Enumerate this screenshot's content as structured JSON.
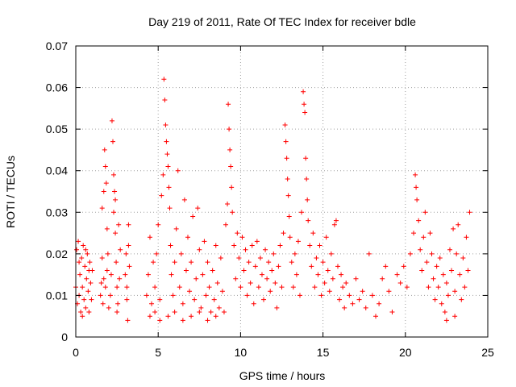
{
  "chart_data": {
    "type": "scatter",
    "title": "Day 219 of 2011, Rate Of TEC Index for receiver bdle",
    "xlabel": "GPS time / hours",
    "ylabel": "ROTI / TECUs",
    "xlim": [
      0,
      25
    ],
    "ylim": [
      0,
      0.07
    ],
    "x_ticks": [
      0,
      5,
      10,
      15,
      20,
      25
    ],
    "y_ticks": [
      0,
      0.01,
      0.02,
      0.03,
      0.04,
      0.05,
      0.06,
      0.07
    ],
    "x_tick_labels": [
      "0",
      "5",
      "10",
      "15",
      "20",
      "25"
    ],
    "y_tick_labels": [
      "0",
      "0.01",
      "0.02",
      "0.03",
      "0.04",
      "0.05",
      "0.06",
      "0.07"
    ],
    "grid": true,
    "marker": "+",
    "color": "#ff0000",
    "points": [
      [
        0.0,
        0.012
      ],
      [
        0.05,
        0.021
      ],
      [
        0.1,
        0.008
      ],
      [
        0.15,
        0.023
      ],
      [
        0.2,
        0.01
      ],
      [
        0.25,
        0.015
      ],
      [
        0.3,
        0.006
      ],
      [
        0.35,
        0.019
      ],
      [
        0.4,
        0.012
      ],
      [
        0.45,
        0.022
      ],
      [
        0.5,
        0.009
      ],
      [
        0.55,
        0.017
      ],
      [
        0.6,
        0.007
      ],
      [
        0.65,
        0.014
      ],
      [
        0.7,
        0.02
      ],
      [
        0.75,
        0.011
      ],
      [
        0.8,
        0.006
      ],
      [
        0.85,
        0.018
      ],
      [
        0.9,
        0.013
      ],
      [
        0.95,
        0.009
      ],
      [
        1.0,
        0.016
      ],
      [
        0.2,
        0.018
      ],
      [
        0.4,
        0.005
      ],
      [
        0.6,
        0.021
      ],
      [
        0.8,
        0.016
      ],
      [
        1.5,
        0.01
      ],
      [
        1.55,
        0.013
      ],
      [
        1.6,
        0.019
      ],
      [
        1.65,
        0.008
      ],
      [
        1.7,
        0.014
      ],
      [
        1.75,
        0.045
      ],
      [
        1.8,
        0.041
      ],
      [
        1.85,
        0.037
      ],
      [
        1.9,
        0.026
      ],
      [
        1.95,
        0.02
      ],
      [
        2.0,
        0.007
      ],
      [
        1.6,
        0.031
      ],
      [
        1.7,
        0.035
      ],
      [
        1.8,
        0.012
      ],
      [
        1.9,
        0.016
      ],
      [
        2.1,
        0.01
      ],
      [
        2.15,
        0.015
      ],
      [
        2.2,
        0.052
      ],
      [
        2.25,
        0.047
      ],
      [
        2.3,
        0.039
      ],
      [
        2.35,
        0.035
      ],
      [
        2.4,
        0.025
      ],
      [
        2.45,
        0.018
      ],
      [
        2.5,
        0.012
      ],
      [
        2.55,
        0.008
      ],
      [
        2.6,
        0.027
      ],
      [
        2.65,
        0.014
      ],
      [
        2.7,
        0.021
      ],
      [
        2.3,
        0.03
      ],
      [
        2.4,
        0.033
      ],
      [
        2.5,
        0.006
      ],
      [
        3.0,
        0.015
      ],
      [
        3.05,
        0.02
      ],
      [
        3.1,
        0.012
      ],
      [
        3.15,
        0.004
      ],
      [
        3.2,
        0.027
      ],
      [
        3.25,
        0.017
      ],
      [
        3.1,
        0.009
      ],
      [
        3.2,
        0.022
      ],
      [
        4.3,
        0.01
      ],
      [
        4.4,
        0.015
      ],
      [
        4.5,
        0.024
      ],
      [
        4.6,
        0.008
      ],
      [
        4.7,
        0.018
      ],
      [
        4.8,
        0.012
      ],
      [
        4.9,
        0.02
      ],
      [
        5.0,
        0.027
      ],
      [
        5.1,
        0.009
      ],
      [
        5.2,
        0.034
      ],
      [
        5.3,
        0.039
      ],
      [
        5.35,
        0.062
      ],
      [
        5.4,
        0.057
      ],
      [
        5.45,
        0.051
      ],
      [
        5.5,
        0.047
      ],
      [
        5.55,
        0.044
      ],
      [
        5.6,
        0.041
      ],
      [
        5.65,
        0.036
      ],
      [
        5.7,
        0.031
      ],
      [
        5.75,
        0.022
      ],
      [
        5.8,
        0.015
      ],
      [
        5.9,
        0.01
      ],
      [
        6.0,
        0.018
      ],
      [
        6.1,
        0.026
      ],
      [
        6.2,
        0.04
      ],
      [
        6.3,
        0.012
      ],
      [
        6.4,
        0.02
      ],
      [
        6.5,
        0.008
      ],
      [
        6.6,
        0.033
      ],
      [
        6.7,
        0.016
      ],
      [
        6.8,
        0.024
      ],
      [
        6.9,
        0.011
      ],
      [
        7.0,
        0.018
      ],
      [
        7.1,
        0.029
      ],
      [
        7.2,
        0.009
      ],
      [
        7.3,
        0.014
      ],
      [
        7.4,
        0.031
      ],
      [
        7.5,
        0.021
      ],
      [
        7.6,
        0.007
      ],
      [
        7.7,
        0.015
      ],
      [
        7.8,
        0.023
      ],
      [
        7.9,
        0.01
      ],
      [
        8.0,
        0.018
      ],
      [
        8.1,
        0.012
      ],
      [
        8.2,
        0.006
      ],
      [
        8.3,
        0.016
      ],
      [
        8.4,
        0.009
      ],
      [
        8.5,
        0.022
      ],
      [
        8.6,
        0.013
      ],
      [
        8.7,
        0.007
      ],
      [
        8.8,
        0.019
      ],
      [
        8.9,
        0.011
      ],
      [
        4.5,
        0.005
      ],
      [
        4.8,
        0.006
      ],
      [
        5.1,
        0.004
      ],
      [
        5.6,
        0.005
      ],
      [
        6.0,
        0.006
      ],
      [
        6.5,
        0.004
      ],
      [
        7.0,
        0.005
      ],
      [
        7.5,
        0.006
      ],
      [
        8.0,
        0.004
      ],
      [
        8.5,
        0.005
      ],
      [
        9.0,
        0.006
      ],
      [
        9.1,
        0.027
      ],
      [
        9.2,
        0.032
      ],
      [
        9.25,
        0.056
      ],
      [
        9.3,
        0.05
      ],
      [
        9.35,
        0.045
      ],
      [
        9.4,
        0.041
      ],
      [
        9.45,
        0.036
      ],
      [
        9.5,
        0.03
      ],
      [
        9.6,
        0.022
      ],
      [
        9.7,
        0.014
      ],
      [
        9.8,
        0.025
      ],
      [
        9.9,
        0.019
      ],
      [
        10.0,
        0.012
      ],
      [
        10.1,
        0.024
      ],
      [
        10.2,
        0.016
      ],
      [
        10.3,
        0.021
      ],
      [
        10.4,
        0.01
      ],
      [
        10.5,
        0.018
      ],
      [
        10.6,
        0.013
      ],
      [
        10.7,
        0.022
      ],
      [
        10.8,
        0.008
      ],
      [
        10.9,
        0.017
      ],
      [
        11.0,
        0.023
      ],
      [
        11.1,
        0.012
      ],
      [
        11.2,
        0.019
      ],
      [
        11.3,
        0.015
      ],
      [
        11.4,
        0.009
      ],
      [
        11.5,
        0.021
      ],
      [
        11.6,
        0.014
      ],
      [
        11.7,
        0.018
      ],
      [
        11.8,
        0.011
      ],
      [
        11.9,
        0.016
      ],
      [
        12.0,
        0.02
      ],
      [
        12.1,
        0.013
      ],
      [
        12.2,
        0.007
      ],
      [
        12.3,
        0.017
      ],
      [
        12.4,
        0.022
      ],
      [
        12.5,
        0.012
      ],
      [
        12.6,
        0.025
      ],
      [
        12.7,
        0.051
      ],
      [
        12.75,
        0.047
      ],
      [
        12.8,
        0.043
      ],
      [
        12.85,
        0.038
      ],
      [
        12.9,
        0.034
      ],
      [
        12.95,
        0.029
      ],
      [
        13.0,
        0.024
      ],
      [
        13.1,
        0.018
      ],
      [
        13.2,
        0.012
      ],
      [
        13.3,
        0.02
      ],
      [
        13.4,
        0.015
      ],
      [
        13.5,
        0.023
      ],
      [
        13.6,
        0.01
      ],
      [
        13.7,
        0.03
      ],
      [
        13.8,
        0.059
      ],
      [
        13.85,
        0.056
      ],
      [
        13.9,
        0.054
      ],
      [
        13.95,
        0.043
      ],
      [
        14.0,
        0.038
      ],
      [
        14.05,
        0.033
      ],
      [
        14.1,
        0.028
      ],
      [
        14.2,
        0.022
      ],
      [
        14.3,
        0.017
      ],
      [
        14.4,
        0.025
      ],
      [
        14.5,
        0.012
      ],
      [
        14.6,
        0.019
      ],
      [
        14.7,
        0.015
      ],
      [
        14.8,
        0.022
      ],
      [
        14.9,
        0.01
      ],
      [
        15.0,
        0.018
      ],
      [
        15.1,
        0.013
      ],
      [
        15.2,
        0.024
      ],
      [
        15.3,
        0.016
      ],
      [
        15.4,
        0.011
      ],
      [
        15.5,
        0.02
      ],
      [
        15.6,
        0.014
      ],
      [
        15.7,
        0.027
      ],
      [
        15.8,
        0.028
      ],
      [
        15.9,
        0.017
      ],
      [
        16.0,
        0.009
      ],
      [
        16.1,
        0.015
      ],
      [
        16.2,
        0.012
      ],
      [
        16.3,
        0.007
      ],
      [
        16.4,
        0.013
      ],
      [
        16.6,
        0.01
      ],
      [
        16.8,
        0.008
      ],
      [
        17.0,
        0.014
      ],
      [
        17.2,
        0.009
      ],
      [
        17.4,
        0.011
      ],
      [
        17.6,
        0.007
      ],
      [
        17.8,
        0.02
      ],
      [
        18.0,
        0.01
      ],
      [
        18.2,
        0.005
      ],
      [
        18.4,
        0.008
      ],
      [
        18.6,
        0.014
      ],
      [
        18.8,
        0.017
      ],
      [
        19.0,
        0.011
      ],
      [
        19.2,
        0.006
      ],
      [
        19.5,
        0.015
      ],
      [
        19.7,
        0.013
      ],
      [
        19.9,
        0.017
      ],
      [
        20.1,
        0.012
      ],
      [
        20.3,
        0.02
      ],
      [
        20.5,
        0.025
      ],
      [
        20.6,
        0.039
      ],
      [
        20.65,
        0.036
      ],
      [
        20.7,
        0.033
      ],
      [
        20.8,
        0.028
      ],
      [
        20.9,
        0.021
      ],
      [
        21.0,
        0.016
      ],
      [
        21.1,
        0.024
      ],
      [
        21.2,
        0.03
      ],
      [
        21.3,
        0.018
      ],
      [
        21.4,
        0.012
      ],
      [
        21.5,
        0.025
      ],
      [
        21.6,
        0.02
      ],
      [
        21.7,
        0.014
      ],
      [
        21.8,
        0.009
      ],
      [
        21.9,
        0.017
      ],
      [
        22.0,
        0.012
      ],
      [
        22.1,
        0.019
      ],
      [
        22.2,
        0.008
      ],
      [
        22.3,
        0.015
      ],
      [
        22.4,
        0.006
      ],
      [
        22.5,
        0.013
      ],
      [
        22.6,
        0.01
      ],
      [
        22.7,
        0.021
      ],
      [
        22.8,
        0.016
      ],
      [
        22.9,
        0.026
      ],
      [
        23.0,
        0.011
      ],
      [
        23.1,
        0.02
      ],
      [
        23.2,
        0.027
      ],
      [
        23.3,
        0.015
      ],
      [
        23.4,
        0.009
      ],
      [
        23.5,
        0.019
      ],
      [
        23.6,
        0.012
      ],
      [
        23.7,
        0.024
      ],
      [
        23.8,
        0.016
      ],
      [
        23.9,
        0.03
      ],
      [
        22.5,
        0.004
      ],
      [
        23.0,
        0.005
      ]
    ]
  }
}
